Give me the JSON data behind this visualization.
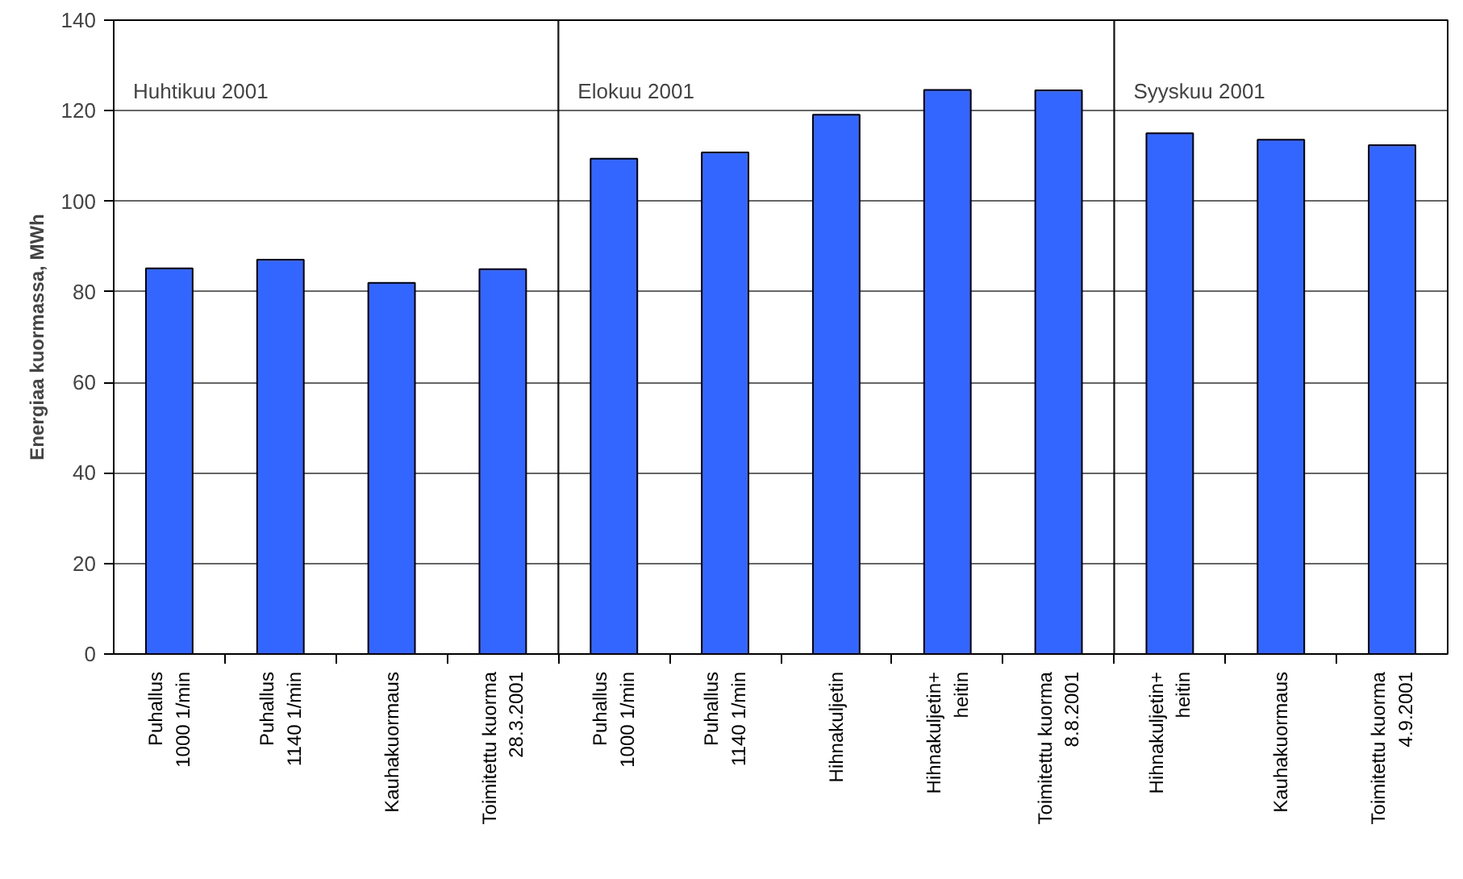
{
  "chart_data": {
    "type": "bar",
    "ylabel": "Energiaa kuormassa, MWh",
    "categories": [
      "Puhallus\n1000 1/min",
      "Puhallus\n1140 1/min",
      "Kauhakuormaus",
      "Toimitettu kuorma\n28.3.2001",
      "Puhallus\n1000 1/min",
      "Puhallus\n1140 1/min",
      "Hihnakuljetin",
      "Hihnakuljetin+\nheitin",
      "Toimitettu kuorma\n8.8.2001",
      "Hihnakuljetin+\nheitin",
      "Kauhakuormaus",
      "Toimitettu kuorma\n4.9.2001"
    ],
    "values": [
      85.2,
      87.1,
      82.0,
      85.0,
      109.4,
      110.8,
      119.1,
      124.6,
      124.5,
      115.0,
      113.6,
      112.4
    ],
    "color": "#3366ff",
    "ylim": [
      0,
      140
    ],
    "yticks": [
      0,
      20,
      40,
      60,
      80,
      100,
      120,
      140
    ],
    "grid": "y",
    "annotations": [
      "Huhtikuu 2001",
      "Elokuu 2001",
      "Syyskuu 2001"
    ]
  }
}
